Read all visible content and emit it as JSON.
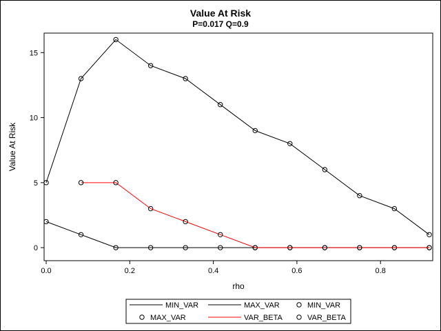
{
  "chart_data": {
    "type": "line",
    "title": "Value At Risk",
    "subtitle": "P=0.017 Q=0.9",
    "xlabel": "rho",
    "ylabel": "Value At Risk",
    "xlim": [
      -0.005,
      0.925
    ],
    "ylim": [
      -1,
      16.5
    ],
    "xticks": [
      0.0,
      0.2,
      0.4,
      0.6,
      0.8
    ],
    "xtick_labels": [
      "0.0",
      "0.2",
      "0.4",
      "0.6",
      "0.8"
    ],
    "yticks": [
      0,
      5,
      10,
      15
    ],
    "ytick_labels": [
      "0",
      "5",
      "10",
      "15"
    ],
    "series": [
      {
        "name": "MIN_VAR",
        "color": "#000000",
        "x": [
          0,
          0.0833,
          0.1667,
          0.25,
          0.3333,
          0.4167,
          0.5,
          0.5833,
          0.6667,
          0.75,
          0.8333,
          0.9167
        ],
        "values": [
          2,
          1,
          0,
          0,
          0,
          0,
          0,
          0,
          0,
          0,
          0,
          0
        ]
      },
      {
        "name": "MAX_VAR",
        "color": "#000000",
        "x": [
          0,
          0.0833,
          0.1667,
          0.25,
          0.3333,
          0.4167,
          0.5,
          0.5833,
          0.6667,
          0.75,
          0.8333,
          0.9167
        ],
        "values": [
          5,
          13,
          16,
          14,
          13,
          11,
          9,
          8,
          6,
          4,
          3,
          1
        ]
      },
      {
        "name": "VAR_BETA",
        "color": "#ff0000",
        "x": [
          0.0833,
          0.1667,
          0.25,
          0.3333,
          0.4167,
          0.5,
          0.5833,
          0.6667,
          0.75,
          0.8333,
          0.9167
        ],
        "values": [
          5,
          5,
          3,
          2,
          1,
          0,
          0,
          0,
          0,
          0,
          0
        ]
      }
    ],
    "legend": {
      "placement": "bottom",
      "entries": [
        {
          "label": "MIN_VAR",
          "kind": "line",
          "color": "#000000"
        },
        {
          "label": "MAX_VAR",
          "kind": "line",
          "color": "#000000"
        },
        {
          "label": "MIN_VAR",
          "kind": "marker",
          "color": "#000000"
        },
        {
          "label": "MAX_VAR",
          "kind": "marker",
          "color": "#000000"
        },
        {
          "label": "VAR_BETA",
          "kind": "line",
          "color": "#ff0000"
        },
        {
          "label": "VAR_BETA",
          "kind": "marker",
          "color": "#000000"
        }
      ]
    }
  }
}
